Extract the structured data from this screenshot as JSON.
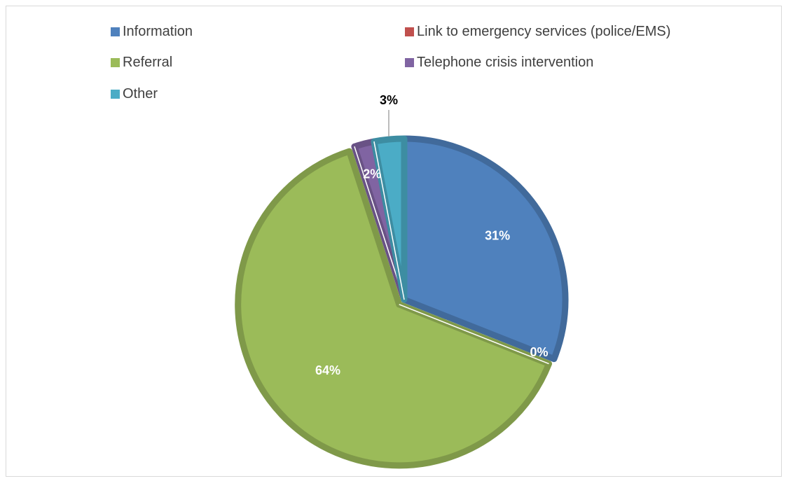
{
  "chart_data": {
    "type": "pie",
    "title": "",
    "categories": [
      "Information",
      "Link to emergency services (police/EMS)",
      "Referral",
      "Telephone crisis intervention",
      "Other"
    ],
    "values": [
      31,
      0,
      64,
      2,
      3
    ],
    "data_labels": [
      "31%",
      "0%",
      "64%",
      "2%",
      "3%"
    ],
    "colors": [
      "#4F81BD",
      "#C0504D",
      "#9BBB59",
      "#8064A2",
      "#4BACC6"
    ],
    "legend_position": "top",
    "start_angle": "12 o'clock",
    "direction": "clockwise"
  }
}
